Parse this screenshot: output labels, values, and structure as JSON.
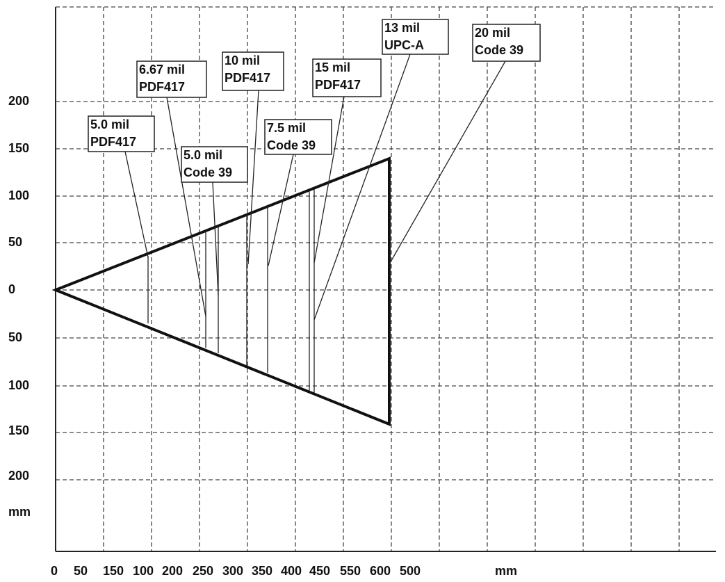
{
  "y_axis_labels": [
    "200",
    "150",
    "100",
    "50",
    "0",
    "50",
    "100",
    "150",
    "200",
    "mm"
  ],
  "x_axis_labels": [
    "0",
    "50",
    "150",
    "100",
    "200",
    "250",
    "300",
    "350",
    "400",
    "450",
    "550",
    "600",
    "500",
    "mm"
  ],
  "callouts": [
    {
      "lines": [
        "5.0 mil",
        "PDF417"
      ]
    },
    {
      "lines": [
        "6.67 mil",
        "PDF417"
      ]
    },
    {
      "lines": [
        "5.0 mil",
        "Code 39"
      ]
    },
    {
      "lines": [
        "10 mil",
        "PDF417"
      ]
    },
    {
      "lines": [
        "7.5 mil",
        "Code 39"
      ]
    },
    {
      "lines": [
        "15 mil",
        "PDF417"
      ]
    },
    {
      "lines": [
        "13 mil",
        "UPC-A"
      ]
    },
    {
      "lines": [
        "20 mil",
        "Code 39"
      ]
    }
  ]
}
